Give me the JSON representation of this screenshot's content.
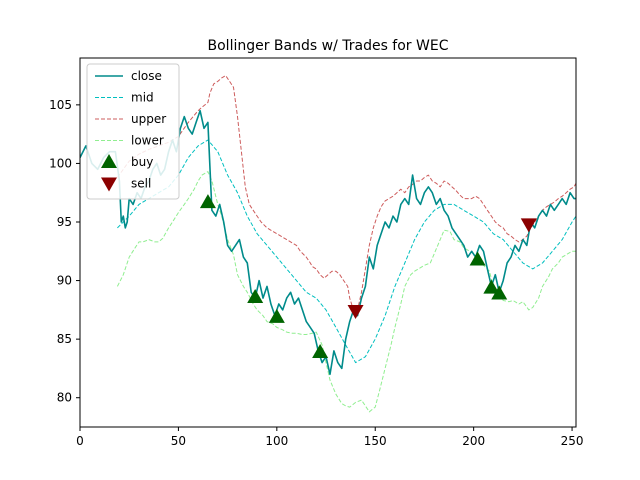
{
  "chart_data": {
    "type": "line",
    "title": "Bollinger Bands w/ Trades for WEC",
    "xlabel": "",
    "ylabel": "",
    "xlim": [
      0,
      252
    ],
    "ylim": [
      77.5,
      109
    ],
    "xticks": [
      0,
      50,
      100,
      150,
      200,
      250
    ],
    "yticks": [
      80,
      85,
      90,
      95,
      100,
      105
    ],
    "grid": false,
    "legend_position": "top-left",
    "series": [
      {
        "name": "close",
        "style": "solid",
        "color": "#008b8b",
        "x": [
          0,
          3,
          6,
          9,
          12,
          15,
          18,
          20,
          21,
          22,
          23,
          24,
          25,
          27,
          29,
          31,
          33,
          35,
          37,
          39,
          41,
          43,
          45,
          47,
          49,
          51,
          53,
          55,
          57,
          59,
          61,
          63,
          65,
          67,
          69,
          71,
          73,
          75,
          77,
          79,
          81,
          83,
          85,
          87,
          89,
          91,
          93,
          95,
          97,
          99,
          101,
          103,
          105,
          107,
          109,
          111,
          113,
          115,
          117,
          119,
          121,
          123,
          125,
          127,
          129,
          131,
          133,
          135,
          137,
          139,
          141,
          143,
          145,
          147,
          149,
          151,
          153,
          155,
          157,
          159,
          161,
          163,
          165,
          167,
          169,
          171,
          173,
          175,
          177,
          179,
          181,
          183,
          185,
          187,
          189,
          191,
          193,
          195,
          197,
          199,
          201,
          203,
          205,
          207,
          209,
          211,
          213,
          215,
          217,
          219,
          221,
          223,
          225,
          227,
          229,
          231,
          233,
          235,
          237,
          239,
          241,
          243,
          245,
          247,
          249,
          251,
          252
        ],
        "values": [
          100.5,
          101.5,
          100,
          99.5,
          100.5,
          101,
          101,
          98.5,
          95,
          95.5,
          94.5,
          95,
          97,
          96.5,
          97.5,
          97,
          98,
          98.5,
          99.5,
          100,
          99,
          99.5,
          101,
          102,
          101,
          103,
          104,
          103,
          102.5,
          103.5,
          104.5,
          103,
          103.5,
          96,
          95.5,
          96.5,
          95,
          93,
          92.5,
          93,
          93.5,
          92,
          91.5,
          89,
          88.5,
          90,
          88.5,
          89.5,
          88,
          87,
          88,
          87.5,
          88.5,
          89,
          88,
          88.5,
          87.5,
          86.5,
          86,
          85.5,
          84,
          83,
          83.5,
          82,
          84,
          83,
          82.5,
          85,
          86.5,
          87.5,
          87,
          88.5,
          89.5,
          92,
          91,
          93,
          94,
          95,
          94.5,
          95.5,
          95,
          96.5,
          97,
          96.5,
          99,
          97,
          96.5,
          97.5,
          98,
          97.5,
          96.5,
          97,
          96,
          95.5,
          94.5,
          94,
          93.5,
          93,
          92,
          92.5,
          92,
          93,
          92.5,
          91,
          89.5,
          90.5,
          89,
          90,
          91.5,
          92,
          93,
          92.5,
          93.5,
          93,
          95,
          94.5,
          95.5,
          96,
          95.5,
          96.5,
          96,
          96.5,
          97,
          96.5,
          97.5,
          97,
          97
        ]
      },
      {
        "name": "mid",
        "style": "dashed",
        "color": "#00bfbf",
        "x": [
          19,
          25,
          30,
          35,
          40,
          45,
          50,
          55,
          60,
          65,
          70,
          75,
          80,
          85,
          90,
          95,
          100,
          105,
          110,
          115,
          120,
          125,
          130,
          135,
          140,
          145,
          150,
          155,
          160,
          165,
          170,
          175,
          180,
          185,
          190,
          195,
          200,
          205,
          210,
          215,
          220,
          225,
          230,
          235,
          240,
          245,
          250,
          252
        ],
        "values": [
          94.5,
          95.5,
          96.5,
          97,
          97.5,
          98,
          99,
          100.5,
          101.5,
          102,
          101,
          99,
          97.5,
          95.5,
          94,
          93,
          92,
          91,
          90,
          89,
          88.5,
          87.5,
          86,
          84.5,
          83,
          83.5,
          85,
          87,
          89.5,
          91.5,
          93.5,
          95,
          96,
          96.5,
          96.5,
          96,
          95.5,
          95,
          94,
          93.5,
          92.5,
          91.5,
          91,
          91.5,
          92.5,
          93.5,
          95,
          95.5
        ]
      },
      {
        "name": "upper",
        "style": "dashed",
        "color": "#cd5c5c",
        "x": [
          19,
          25,
          30,
          35,
          40,
          45,
          50,
          55,
          60,
          62,
          65,
          66,
          68,
          70,
          72,
          74,
          76,
          78,
          80,
          82,
          84,
          86,
          88,
          90,
          92,
          95,
          98,
          100,
          102,
          105,
          108,
          110,
          112,
          115,
          117,
          118,
          120,
          122,
          124,
          126,
          128,
          130,
          132,
          134,
          136,
          137,
          138,
          139,
          140,
          141,
          143,
          145,
          147,
          149,
          151,
          153,
          155,
          157,
          159,
          161,
          163,
          165,
          167,
          169,
          171,
          173,
          175,
          177,
          179,
          181,
          183,
          185,
          187,
          189,
          191,
          193,
          195,
          197,
          199,
          201,
          203,
          205,
          207,
          209,
          211,
          213,
          215,
          217,
          219,
          221,
          223,
          225,
          227,
          229,
          231,
          233,
          235,
          237,
          239,
          241,
          243,
          245,
          247,
          249,
          251,
          252
        ],
        "values": [
          98.8,
          100.2,
          100.8,
          101.2,
          101.5,
          101.8,
          102.3,
          103.5,
          104.5,
          104.8,
          105.2,
          106,
          106.8,
          107,
          107.3,
          107.5,
          107,
          106.5,
          104,
          101,
          98,
          96.5,
          96,
          95.5,
          95,
          94.5,
          94.2,
          94,
          93.8,
          93.5,
          93.2,
          93,
          92.5,
          92,
          91.5,
          91.2,
          91,
          90.5,
          90.2,
          90.5,
          90.8,
          90.8,
          90.5,
          90,
          89.5,
          88.5,
          88,
          87.2,
          86.8,
          87.5,
          89,
          91,
          93,
          94.5,
          95.5,
          96.3,
          96.8,
          97,
          97.2,
          97.5,
          97.8,
          97.5,
          98,
          98.2,
          98.5,
          98.5,
          98.8,
          99,
          98.5,
          98.3,
          98,
          98.5,
          98.3,
          98,
          97.7,
          97.3,
          97,
          97,
          97,
          97.2,
          97,
          96.5,
          96,
          95.5,
          95,
          94.7,
          94.5,
          94,
          93.8,
          93.5,
          93.3,
          93.5,
          93.8,
          94.5,
          95,
          95.5,
          96,
          96.3,
          96.5,
          96.7,
          97,
          97.2,
          97.5,
          97.8,
          98,
          98.3
        ]
      },
      {
        "name": "lower",
        "style": "dashed",
        "color": "#90ee90",
        "x": [
          19,
          22,
          25,
          28,
          30,
          32,
          35,
          38,
          40,
          42,
          44,
          45,
          47,
          50,
          53,
          55,
          58,
          60,
          62,
          65,
          67,
          70,
          72,
          75,
          78,
          80,
          83,
          85,
          88,
          90,
          93,
          95,
          98,
          100,
          103,
          105,
          108,
          110,
          113,
          115,
          118,
          120,
          123,
          125,
          127,
          130,
          133,
          135,
          137,
          140,
          143,
          145,
          147,
          150,
          152,
          155,
          158,
          160,
          163,
          165,
          168,
          170,
          172,
          175,
          178,
          180,
          183,
          185,
          188,
          190,
          193,
          195,
          198,
          200,
          203,
          205,
          208,
          210,
          213,
          215,
          218,
          220,
          223,
          225,
          228,
          230,
          233,
          235,
          238,
          240,
          243,
          245,
          248,
          250,
          252
        ],
        "values": [
          89.5,
          90.5,
          92,
          92.8,
          93.3,
          93.3,
          93.5,
          93.3,
          93.3,
          93.6,
          94.2,
          94.5,
          95,
          95.8,
          96.5,
          97,
          97.8,
          98.5,
          99,
          99.3,
          98.5,
          96.5,
          95.5,
          93.5,
          92.2,
          90.5,
          89.5,
          89,
          88,
          87.5,
          87,
          86.5,
          86.3,
          86,
          85.8,
          85.6,
          85.5,
          85.5,
          85.4,
          85.4,
          85.5,
          85.6,
          84.5,
          83,
          81.5,
          80.3,
          79.5,
          79.3,
          79.2,
          79.6,
          79.8,
          79.3,
          78.8,
          79.2,
          80.5,
          82.5,
          84.5,
          86,
          88,
          89.5,
          90.5,
          90.8,
          91,
          91.3,
          91.5,
          92.3,
          93.5,
          94.3,
          94.2,
          93.5,
          93.3,
          92.8,
          92.5,
          92.3,
          92,
          91.3,
          90.8,
          89.5,
          89,
          88.3,
          88.2,
          88.3,
          88,
          88.2,
          87.5,
          87.7,
          88.5,
          89.5,
          90.3,
          91,
          91.5,
          92,
          92.3,
          92.5,
          92.5
        ]
      }
    ],
    "markers": [
      {
        "name": "buy",
        "marker": "triangle-up",
        "color": "#006400",
        "x": [
          65,
          89,
          100,
          122,
          202,
          209,
          213
        ],
        "values": [
          96.7,
          88.6,
          86.9,
          83.9,
          91.8,
          89.4,
          88.9
        ]
      },
      {
        "name": "sell",
        "marker": "triangle-down",
        "color": "#8b0000",
        "x": [
          140,
          228
        ],
        "values": [
          87.4,
          94.8
        ]
      }
    ]
  }
}
